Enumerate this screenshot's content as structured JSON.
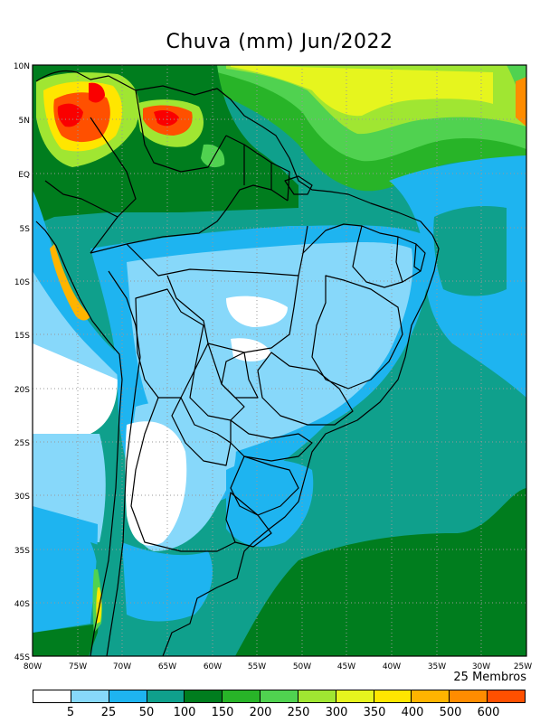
{
  "title": "Chuva (mm) Jun/2022",
  "members_label": "25 Membros",
  "lat_labels": [
    "10N",
    "5N",
    "EQ",
    "5S",
    "10S",
    "15S",
    "20S",
    "25S",
    "30S",
    "35S",
    "40S",
    "45S"
  ],
  "lon_labels": [
    "80W",
    "75W",
    "70W",
    "65W",
    "60W",
    "55W",
    "50W",
    "45W",
    "40W",
    "35W",
    "30W",
    "25W"
  ],
  "legend": {
    "colors": [
      "#ffffff",
      "#87d8fa",
      "#1eb4f0",
      "#0fa08c",
      "#007d1e",
      "#28b428",
      "#50d250",
      "#a0e632",
      "#e6f51e",
      "#ffe600",
      "#ffb400",
      "#ff8c00",
      "#ff5000",
      "#fa0000"
    ],
    "labels": [
      "5",
      "25",
      "50",
      "100",
      "150",
      "200",
      "250",
      "300",
      "350",
      "400",
      "500",
      "600"
    ]
  },
  "palette": {
    "ocean_teal": "#0fa08c",
    "dark_green": "#007d1e",
    "light_blue": "#87d8fa",
    "mid_blue": "#1eb4f0"
  }
}
